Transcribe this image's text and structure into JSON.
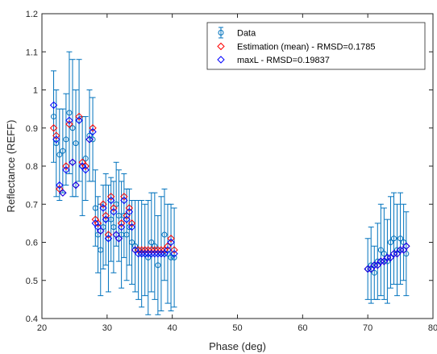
{
  "chart_data": {
    "type": "scatter",
    "xlabel": "Phase (deg)",
    "ylabel": "Reflectance (REFF)",
    "xlim": [
      20,
      80
    ],
    "ylim": [
      0.4,
      1.2
    ],
    "xticks": [
      "20",
      "30",
      "40",
      "50",
      "60",
      "70",
      "80"
    ],
    "yticks": [
      "0.4",
      "0.5",
      "0.6",
      "0.7",
      "0.8",
      "0.9",
      "1",
      "1.1",
      "1.2"
    ],
    "grid": false,
    "legend_position": "top-right",
    "colors": {
      "data": "#0072BD",
      "mean": "#FF0000",
      "maxl": "#0000FF"
    },
    "legend": {
      "data": "Data",
      "mean": "Estimation (mean) - RMSD=0.1785",
      "maxl": "maxL - RMSD=0.19837"
    },
    "series": [
      {
        "name": "Data",
        "marker": "errorbar",
        "points": [
          [
            21.8,
            0.93,
            0.9,
            0.96,
            0.12
          ],
          [
            22.2,
            0.86,
            0.88,
            0.87,
            0.14
          ],
          [
            22.7,
            0.83,
            0.74,
            0.75,
            0.12
          ],
          [
            23.2,
            0.84,
            0.73,
            0.73,
            0.11
          ],
          [
            23.7,
            0.87,
            0.8,
            0.79,
            0.12
          ],
          [
            24.2,
            0.94,
            0.91,
            0.92,
            0.16
          ],
          [
            24.7,
            0.9,
            0.81,
            0.81,
            0.18
          ],
          [
            25.2,
            0.86,
            0.75,
            0.75,
            0.14
          ],
          [
            25.7,
            0.92,
            0.93,
            0.92,
            0.16
          ],
          [
            26.2,
            0.8,
            0.81,
            0.8,
            0.13
          ],
          [
            26.7,
            0.82,
            0.8,
            0.79,
            0.11
          ],
          [
            27.3,
            0.88,
            0.87,
            0.87,
            0.12
          ],
          [
            27.8,
            0.87,
            0.9,
            0.89,
            0.11
          ],
          [
            28.2,
            0.69,
            0.66,
            0.65,
            0.1
          ],
          [
            28.6,
            0.62,
            0.65,
            0.64,
            0.1
          ],
          [
            29.0,
            0.58,
            0.63,
            0.63,
            0.12
          ],
          [
            29.4,
            0.64,
            0.7,
            0.69,
            0.11
          ],
          [
            29.8,
            0.66,
            0.67,
            0.66,
            0.12
          ],
          [
            30.2,
            0.61,
            0.62,
            0.61,
            0.14
          ],
          [
            30.6,
            0.66,
            0.72,
            0.71,
            0.11
          ],
          [
            31.0,
            0.64,
            0.69,
            0.68,
            0.12
          ],
          [
            31.4,
            0.7,
            0.62,
            0.62,
            0.11
          ],
          [
            31.8,
            0.67,
            0.61,
            0.61,
            0.12
          ],
          [
            32.2,
            0.62,
            0.65,
            0.64,
            0.14
          ],
          [
            32.6,
            0.67,
            0.72,
            0.71,
            0.11
          ],
          [
            33.0,
            0.62,
            0.67,
            0.66,
            0.12
          ],
          [
            33.4,
            0.64,
            0.69,
            0.68,
            0.1
          ],
          [
            33.8,
            0.6,
            0.65,
            0.64,
            0.11
          ],
          [
            34.3,
            0.59,
            0.58,
            0.58,
            0.12
          ],
          [
            34.8,
            0.58,
            0.58,
            0.57,
            0.13
          ],
          [
            35.3,
            0.57,
            0.58,
            0.57,
            0.14
          ],
          [
            35.8,
            0.58,
            0.58,
            0.57,
            0.12
          ],
          [
            36.3,
            0.56,
            0.58,
            0.57,
            0.15
          ],
          [
            36.8,
            0.6,
            0.58,
            0.57,
            0.13
          ],
          [
            37.3,
            0.59,
            0.58,
            0.57,
            0.14
          ],
          [
            37.8,
            0.54,
            0.58,
            0.57,
            0.13
          ],
          [
            38.3,
            0.57,
            0.58,
            0.57,
            0.15
          ],
          [
            38.8,
            0.62,
            0.58,
            0.57,
            0.12
          ],
          [
            39.3,
            0.57,
            0.59,
            0.58,
            0.13
          ],
          [
            39.8,
            0.56,
            0.61,
            0.6,
            0.14
          ],
          [
            40.3,
            0.56,
            0.58,
            0.57,
            0.13
          ],
          [
            70.0,
            0.53,
            0.53,
            0.53,
            0.08
          ],
          [
            70.5,
            0.54,
            0.53,
            0.53,
            0.1
          ],
          [
            71.0,
            0.52,
            0.54,
            0.54,
            0.07
          ],
          [
            71.5,
            0.55,
            0.54,
            0.54,
            0.1
          ],
          [
            72.0,
            0.58,
            0.55,
            0.55,
            0.12
          ],
          [
            72.5,
            0.57,
            0.55,
            0.55,
            0.12
          ],
          [
            73.0,
            0.55,
            0.56,
            0.56,
            0.11
          ],
          [
            73.5,
            0.6,
            0.56,
            0.56,
            0.12
          ],
          [
            74.0,
            0.61,
            0.57,
            0.57,
            0.12
          ],
          [
            74.5,
            0.58,
            0.57,
            0.57,
            0.12
          ],
          [
            75.0,
            0.61,
            0.58,
            0.58,
            0.12
          ],
          [
            75.5,
            0.6,
            0.58,
            0.58,
            0.1
          ],
          [
            75.9,
            0.57,
            0.59,
            0.59,
            0.11
          ]
        ],
        "point_format": [
          "x",
          "data",
          "mean",
          "maxl",
          "error"
        ]
      }
    ]
  }
}
